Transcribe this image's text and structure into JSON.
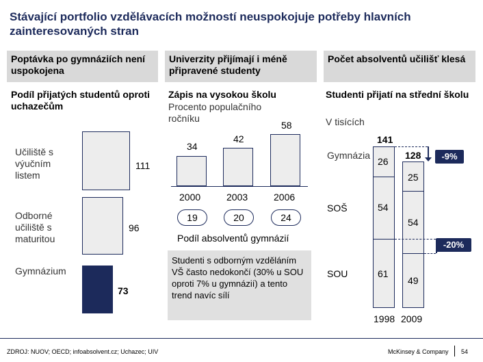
{
  "title": "Stávající portfolio vzdělávacích možností neuspokojuje potřeby hlavních zainteresovaných stran",
  "columns": {
    "col1": {
      "header": "Poptávka po gymnáziích není uspokojena",
      "subheader": "Podíl přijatých studentů oproti uchazečům",
      "rows": [
        {
          "label": "Učiliště s výučním listem",
          "value": "111"
        },
        {
          "label": "Odborné učiliště s maturitou",
          "value": "96"
        },
        {
          "label": "Gymnázium",
          "value": "73"
        }
      ]
    },
    "col2": {
      "header": "Univerzity přijímají i méně připravené studenty",
      "subheader": "Zápis na vysokou školu",
      "subheader2": "Procento populačního ročníku",
      "bars": [
        {
          "year": "2000",
          "value": "34"
        },
        {
          "year": "2003",
          "value": "42"
        },
        {
          "year": "2006",
          "value": "58"
        }
      ],
      "bubbles": [
        "19",
        "20",
        "24"
      ],
      "bubble_label": "Podíl absolventů gymnázií",
      "note": "Studenti s odborným vzděláním VŠ často nedokončí (30% u SOU oproti 7% u gymnázií) a tento trend navíc sílí"
    },
    "col3": {
      "header": "Počet absolventů učilišť klesá",
      "subheader": "Studenti přijatí na střední školu",
      "subheader2": "V tisících",
      "totals": [
        "141",
        "128"
      ],
      "change_tags": [
        "-9%",
        "-20%"
      ],
      "segments": [
        {
          "label": "Gymnázia",
          "v1998": "26",
          "v2009": "25"
        },
        {
          "label": "SOŠ",
          "v1998": "54",
          "v2009": "54"
        },
        {
          "label": "SOU",
          "v1998": "61",
          "v2009": "49"
        }
      ],
      "years": [
        "1998",
        "2009"
      ]
    }
  },
  "footer": {
    "source": "ZDROJ: NUOV; OECD; infoabsolvent.cz; Uchazec; UIV",
    "brand": "McKinsey & Company",
    "page": "54"
  },
  "colors": {
    "navy": "#1c2a5b",
    "grey": "#d9d9d9",
    "bar": "#ededed"
  }
}
